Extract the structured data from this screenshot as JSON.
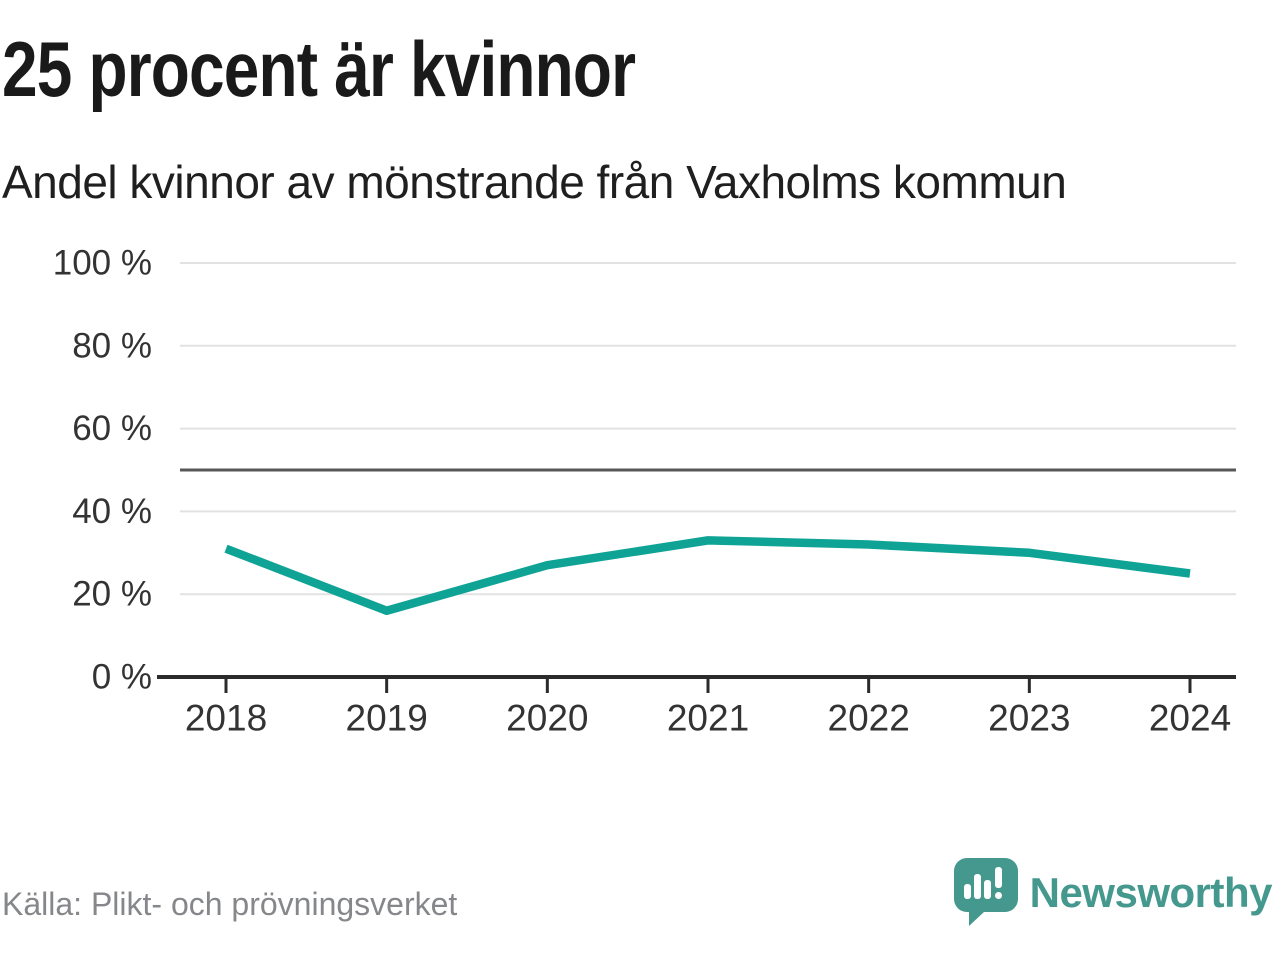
{
  "title": "25 procent är kvinnor",
  "subtitle": "Andel kvinnor av mönstrande från Vaxholms kommun",
  "source": "Källa: Plikt- och prövningsverket",
  "brand": {
    "name": "Newsworthy",
    "icon": "speech-bubble-bar-chart-icon"
  },
  "colors": {
    "line": "#0FA396",
    "logo": "#45988E",
    "grid": "#E2E2E2",
    "reference": "#575757",
    "axis": "#2B2B2B",
    "tick_text": "#333333",
    "source_text": "#85878A"
  },
  "chart_data": {
    "type": "line",
    "title": "25 procent är kvinnor",
    "subtitle": "Andel kvinnor av mönstrande från Vaxholms kommun",
    "x": [
      "2018",
      "2019",
      "2020",
      "2021",
      "2022",
      "2023",
      "2024"
    ],
    "series": [
      {
        "name": "Andel kvinnor av mönstrande",
        "values": [
          31,
          16,
          27,
          33,
          32,
          30,
          25
        ],
        "color": "#0FA396"
      }
    ],
    "unit": "%",
    "ylim": [
      0,
      100
    ],
    "yticks": [
      0,
      20,
      40,
      60,
      80,
      100
    ],
    "ytick_labels": [
      "0 %",
      "20 %",
      "40 %",
      "60 %",
      "80 %",
      "100 %"
    ],
    "xtick_labels": [
      "2018",
      "2019",
      "2020",
      "2021",
      "2022",
      "2023",
      "2024"
    ],
    "reference_line": 50,
    "grid": true,
    "legend": "none",
    "markers": false,
    "source": "Källa: Plikt- och prövningsverket"
  }
}
